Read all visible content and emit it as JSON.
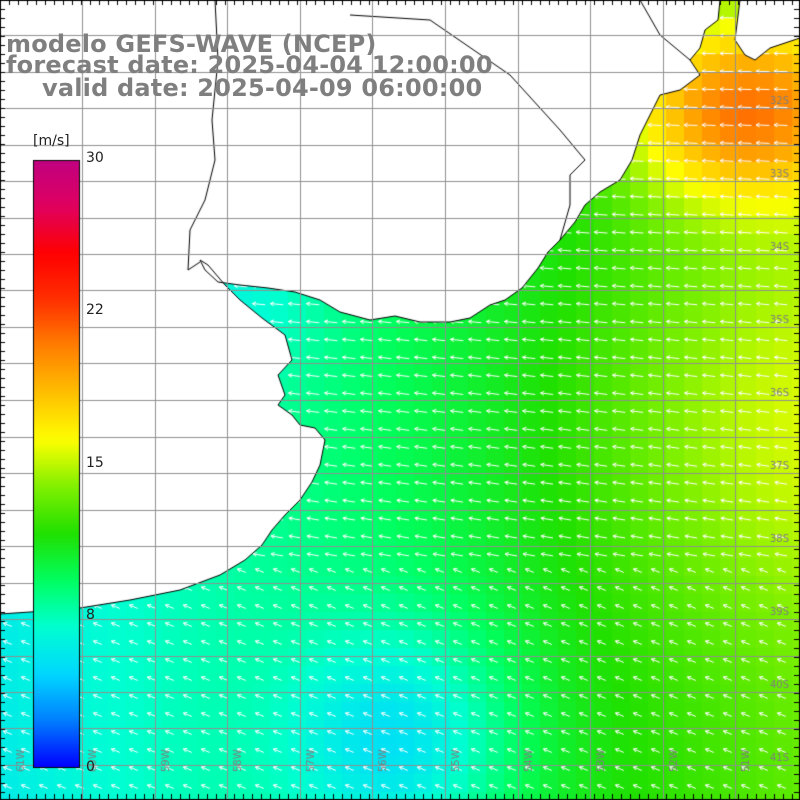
{
  "title": {
    "line1": "modelo GEFS-WAVE (NCEP)",
    "line2": "forecast date: 2025-04-04 12:00:00",
    "line3": "valid date: 2025-04-09 06:00:00"
  },
  "colorbar": {
    "unit": "[m/s]",
    "ticks": [
      {
        "value": 30,
        "label": "30"
      },
      {
        "value": 22,
        "label": "22"
      },
      {
        "value": 15,
        "label": "15"
      },
      {
        "value": 8,
        "label": "8"
      },
      {
        "value": 0,
        "label": "0"
      }
    ],
    "range": [
      0,
      30
    ],
    "colors": [
      "#0000ff",
      "#0080ff",
      "#00d8ff",
      "#00ffd0",
      "#00ff60",
      "#20e000",
      "#80f000",
      "#ffff00",
      "#ffc000",
      "#ff8000",
      "#ff3000",
      "#ff0000",
      "#e00060",
      "#c00080"
    ]
  },
  "map": {
    "lat_labels": [
      "32S",
      "33S",
      "34S",
      "35S",
      "36S",
      "37S",
      "38S",
      "39S",
      "40S",
      "41S"
    ],
    "lon_labels": [
      "61W",
      "60W",
      "59W",
      "58W",
      "57W",
      "56W",
      "55W",
      "54W",
      "53W",
      "52W",
      "51W"
    ],
    "lon_range": [
      -61.3,
      -50.2
    ],
    "lat_range": [
      -41.3,
      -30.4
    ],
    "wind_speed_field_note_color": "#ffffff",
    "land_color": "#ffffff",
    "grid_color": "#909090",
    "coast_color": "#000000"
  }
}
